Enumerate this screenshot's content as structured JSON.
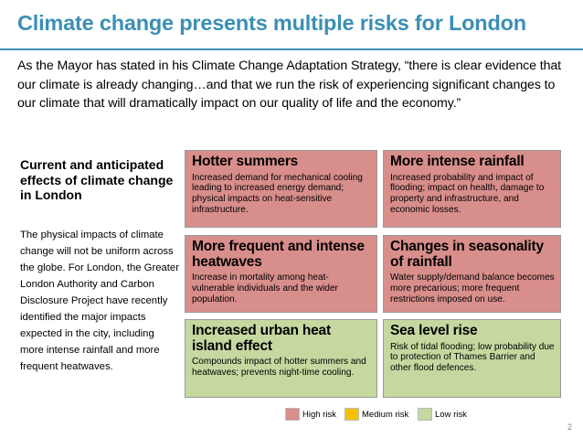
{
  "title": "Climate change presents multiple risks for London",
  "intro": "As the Mayor has stated in his Climate Change Adaptation Strategy, “there is clear evidence that our climate is already changing…and that we run the risk of experiencing significant changes to our climate that will dramatically impact on our quality of life and the economy.”",
  "left": {
    "heading": "Current and anticipated effects of climate change in London",
    "body": "The physical impacts of climate change will not be uniform across the globe. For London, the Greater London Authority and Carbon Disclosure Project have recently identified the major impacts expected in the city, including more intense rainfall and more frequent heatwaves."
  },
  "risks": [
    {
      "title": "Hotter summers",
      "desc": "Increased demand for mechanical cooling leading to increased energy demand; physical impacts on heat-sensitive infrastructure.",
      "level": "High risk"
    },
    {
      "title": "More intense rainfall",
      "desc": "Increased probability and impact of flooding; impact on health, damage to property and infrastructure, and economic losses.",
      "level": "High risk"
    },
    {
      "title": "More frequent and intense heatwaves",
      "desc": "Increase in mortality among heat-vulnerable individuals and the wider population.",
      "level": "High risk"
    },
    {
      "title": "Changes in seasonality of rainfall",
      "desc": "Water supply/demand balance becomes more precarious; more frequent restrictions imposed on use.",
      "level": "High risk"
    },
    {
      "title": "Increased urban heat island effect",
      "desc": "Compounds impact of hotter summers and heatwaves; prevents night-time cooling.",
      "level": "Low risk"
    },
    {
      "title": "Sea level rise",
      "desc": "Risk of tidal flooding; low probability due to protection of Thames Barrier and other flood defences.",
      "level": "Low risk"
    }
  ],
  "legend": {
    "high": {
      "label": "High risk",
      "color": "#d88e8b"
    },
    "medium": {
      "label": "Medium risk",
      "color": "#f5c200"
    },
    "low": {
      "label": "Low risk",
      "color": "#c5d8a0"
    }
  },
  "page_number": "2"
}
